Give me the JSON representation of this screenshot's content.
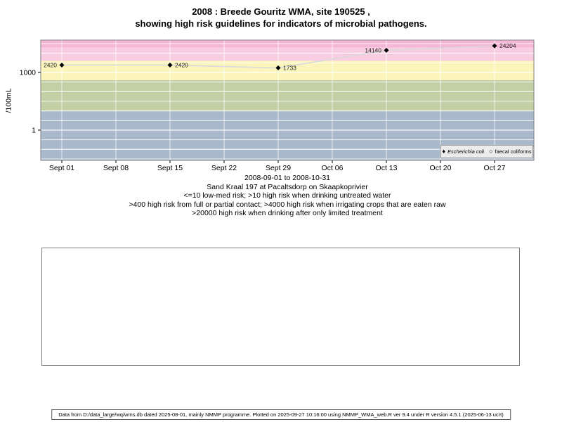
{
  "title": {
    "line1": "2008 : Breede Gouritz WMA, site 190525 ,",
    "line2": "showing high risk guidelines for indicators of microbial pathogens."
  },
  "chart_data": {
    "type": "scatter",
    "y_scale": "log",
    "ylabel": "/100mL",
    "y_ticks": [
      {
        "value": 1000,
        "label": "1000"
      },
      {
        "value": 1,
        "label": "1"
      }
    ],
    "x_ticks": [
      "Sept 01",
      "Sept 08",
      "Sept 15",
      "Sept 22",
      "Sept 29",
      "Oct 06",
      "Oct 13",
      "Oct 20",
      "Oct 27"
    ],
    "series": [
      {
        "name": "Escherichia coli",
        "marker": "diamond",
        "color": "#000000",
        "line_color": "#d9d9d9",
        "points": [
          {
            "date": "Sept 01",
            "tick_index": 0,
            "value": 2420,
            "label": "2420",
            "label_side": "left"
          },
          {
            "date": "Sept 15",
            "tick_index": 2,
            "value": 2420,
            "label": "2420",
            "label_side": "right"
          },
          {
            "date": "Sept 29",
            "tick_index": 4,
            "value": 1733,
            "label": "1733",
            "label_side": "right"
          },
          {
            "date": "Oct 13",
            "tick_index": 6,
            "value": 14140,
            "label": "14140",
            "label_side": "left"
          },
          {
            "date": "Oct 27",
            "tick_index": 8,
            "value": 24204,
            "label": "24204",
            "label_side": "right"
          }
        ]
      },
      {
        "name": "faecal coliforms",
        "marker": "circle",
        "color": "#000000",
        "points": []
      }
    ],
    "risk_bands": [
      {
        "min": null,
        "max": 10,
        "color": "#a9b8ca"
      },
      {
        "min": 10,
        "max": 400,
        "color": "#c3cfa5"
      },
      {
        "min": 400,
        "max": 4000,
        "color": "#fbf5bc"
      },
      {
        "min": 4000,
        "max": 20000,
        "color": "#f9cde1"
      },
      {
        "min": 20000,
        "max": null,
        "color": "#f6b6d6"
      }
    ],
    "caption_lines": [
      "2008-09-01 to 2008-10-31",
      "Sand Kraal 197 at Pacaltsdorp on Skaapkoprivier",
      "<=10 low-med risk; >10 high risk when drinking untreated water",
      ">400 high risk from full or partial contact; >4000 high risk when irrigating crops that are eaten raw",
      ">20000 high risk when drinking after only limited treatment"
    ]
  },
  "legend": {
    "items": [
      {
        "glyph": "♦",
        "label": "Escherichia coli",
        "italic": true
      },
      {
        "glyph": "○",
        "label": "faecal coliforms",
        "italic": false
      }
    ]
  },
  "footer": {
    "text": "Data from D:/data_large/wq/wms.db dated 2025-08-01, mainly NMMP programme. Plotted on 2025-09-27 10:16:00 using NMMP_WMA_web.R ver 9.4 under R version 4.5.1 (2025-06-13 ucrt)"
  }
}
